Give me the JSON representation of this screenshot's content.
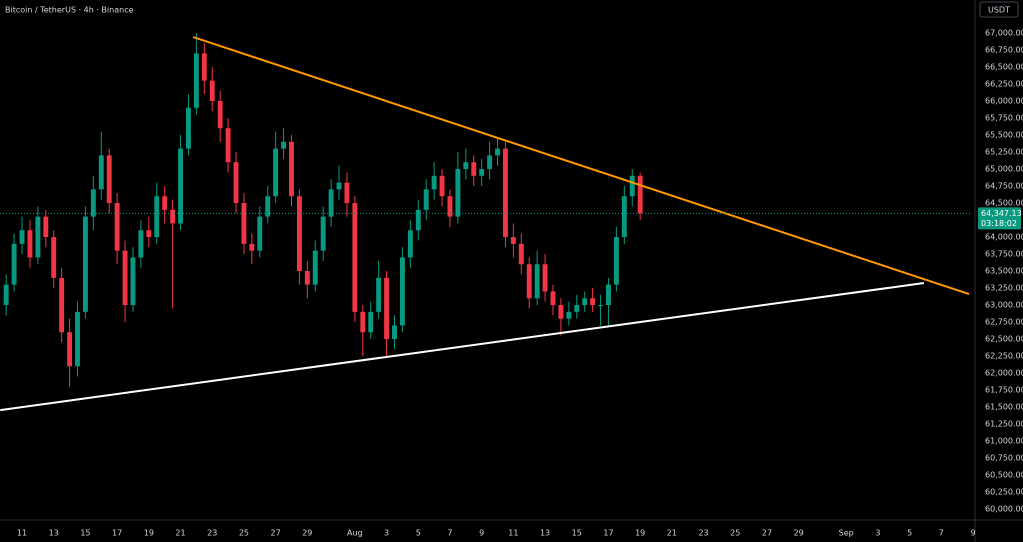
{
  "chart_data": {
    "type": "candlestick",
    "title": "Bitcoin / TetherUS · 4h · Binance",
    "currency_button": "USDT",
    "up_color": "#089981",
    "down_color": "#f23645",
    "candles": [
      [
        10,
        63000,
        63450,
        62850,
        63300
      ],
      [
        10.5,
        63300,
        64050,
        63200,
        63900
      ],
      [
        11,
        63900,
        64300,
        63750,
        64100
      ],
      [
        11.5,
        64100,
        64250,
        63550,
        63700
      ],
      [
        12,
        63700,
        64450,
        63600,
        64300
      ],
      [
        12.5,
        64300,
        64400,
        63850,
        64000
      ],
      [
        13,
        64000,
        64100,
        63250,
        63400
      ],
      [
        13.5,
        63400,
        63550,
        62450,
        62600
      ],
      [
        14,
        62600,
        62800,
        61800,
        62100
      ],
      [
        14.5,
        62100,
        63050,
        61950,
        62900
      ],
      [
        15,
        62900,
        64450,
        62800,
        64300
      ],
      [
        15.5,
        64300,
        64900,
        64100,
        64700
      ],
      [
        16,
        64700,
        65550,
        64550,
        65200
      ],
      [
        16.5,
        65200,
        65300,
        64350,
        64500
      ],
      [
        17,
        64500,
        64650,
        63600,
        63800
      ],
      [
        17.5,
        63800,
        63950,
        62750,
        63000
      ],
      [
        18,
        63000,
        63850,
        62900,
        63700
      ],
      [
        18.5,
        63700,
        64250,
        63550,
        64100
      ],
      [
        19,
        64100,
        64300,
        63850,
        64000
      ],
      [
        19.5,
        64000,
        64800,
        63900,
        64600
      ],
      [
        20,
        64600,
        64750,
        64200,
        64400
      ],
      [
        20.5,
        64400,
        64550,
        62950,
        64200
      ],
      [
        21,
        64200,
        65500,
        64100,
        65300
      ],
      [
        21.5,
        65300,
        66100,
        65200,
        65900
      ],
      [
        22,
        65900,
        67000,
        65800,
        66700
      ],
      [
        22.5,
        66700,
        66850,
        66100,
        66300
      ],
      [
        23,
        66300,
        66500,
        65850,
        66000
      ],
      [
        23.5,
        66000,
        66150,
        65400,
        65600
      ],
      [
        24,
        65600,
        65750,
        64950,
        65100
      ],
      [
        24.5,
        65100,
        65250,
        64350,
        64500
      ],
      [
        25,
        64500,
        64650,
        63750,
        63900
      ],
      [
        25.5,
        63900,
        64050,
        63600,
        63800
      ],
      [
        26,
        63800,
        64450,
        63700,
        64300
      ],
      [
        26.5,
        64300,
        64750,
        64200,
        64600
      ],
      [
        27,
        64600,
        65550,
        64500,
        65300
      ],
      [
        27.5,
        65300,
        65600,
        65150,
        65400
      ],
      [
        28,
        65400,
        65500,
        64450,
        64600
      ],
      [
        28.5,
        64600,
        64700,
        63300,
        63500
      ],
      [
        29,
        63500,
        63650,
        63100,
        63300
      ],
      [
        29.5,
        63300,
        63950,
        63200,
        63800
      ],
      [
        30,
        63800,
        64450,
        63650,
        64300
      ],
      [
        30.5,
        64300,
        64850,
        64150,
        64700
      ],
      [
        31,
        64700,
        65050,
        64550,
        64800
      ],
      [
        31.5,
        64800,
        64950,
        64300,
        64500
      ],
      [
        32,
        64500,
        64600,
        62750,
        62900
      ],
      [
        32.5,
        62900,
        63000,
        62250,
        62600
      ],
      [
        33,
        62600,
        63050,
        62500,
        62900
      ],
      [
        33.5,
        62900,
        63650,
        62800,
        63400
      ],
      [
        34,
        63400,
        63500,
        62250,
        62500
      ],
      [
        34.5,
        62500,
        62850,
        62350,
        62700
      ],
      [
        35,
        62700,
        63850,
        62600,
        63700
      ],
      [
        35.5,
        63700,
        64250,
        63550,
        64100
      ],
      [
        36,
        64100,
        64550,
        63950,
        64400
      ],
      [
        36.5,
        64400,
        64850,
        64250,
        64700
      ],
      [
        37,
        64700,
        65100,
        64550,
        64900
      ],
      [
        37.5,
        64900,
        65000,
        64450,
        64600
      ],
      [
        38,
        64600,
        64700,
        64150,
        64300
      ],
      [
        38.5,
        64300,
        65250,
        64200,
        65000
      ],
      [
        39,
        65000,
        65300,
        64850,
        65100
      ],
      [
        39.5,
        65100,
        65200,
        64750,
        64900
      ],
      [
        40,
        64900,
        65150,
        64750,
        65000
      ],
      [
        40.5,
        65000,
        65400,
        64850,
        65200
      ],
      [
        41,
        65200,
        65450,
        65050,
        65300
      ],
      [
        41.5,
        65300,
        65400,
        63850,
        64000
      ],
      [
        42,
        64000,
        64200,
        63700,
        63900
      ],
      [
        42.5,
        63900,
        64050,
        63450,
        63600
      ],
      [
        43,
        63600,
        63700,
        62950,
        63100
      ],
      [
        43.5,
        63100,
        63800,
        63000,
        63600
      ],
      [
        44,
        63600,
        63750,
        63050,
        63200
      ],
      [
        44.5,
        63200,
        63300,
        62850,
        63000
      ],
      [
        45,
        63000,
        63100,
        62550,
        62800
      ],
      [
        45.5,
        62800,
        63050,
        62700,
        62900
      ],
      [
        46,
        62900,
        63150,
        62800,
        63000
      ],
      [
        46.5,
        63000,
        63200,
        62900,
        63100
      ],
      [
        47,
        63100,
        63250,
        62900,
        63000
      ],
      [
        47.5,
        63000,
        63150,
        62700,
        63000
      ],
      [
        48,
        63000,
        63400,
        62700,
        63300
      ],
      [
        48.5,
        63300,
        64150,
        63200,
        64000
      ],
      [
        49,
        64000,
        64750,
        63900,
        64600
      ],
      [
        49.5,
        64600,
        65000,
        64450,
        64900
      ],
      [
        50,
        64900,
        64950,
        64250,
        64347.13
      ]
    ],
    "last_price": {
      "value": 64347.13,
      "label": "64,347.13"
    },
    "countdown": "03:18:02",
    "trendlines": [
      {
        "color": "#ff9800",
        "points": [
          [
            21.8,
            66940
          ],
          [
            70.75,
            63162
          ]
        ]
      },
      {
        "color": "#ffffff",
        "points": [
          [
            9.625,
            61456
          ],
          [
            67.9,
            63324
          ]
        ]
      }
    ],
    "xlim": [
      9.61,
      70.81
    ],
    "xticks": [
      11,
      13,
      15,
      17,
      19,
      21,
      23,
      25,
      27,
      29,
      {
        "value": 32,
        "label": "Aug"
      },
      {
        "value": 34,
        "label": "3"
      },
      {
        "value": 36,
        "label": "5"
      },
      {
        "value": 38,
        "label": "7"
      },
      {
        "value": 40,
        "label": "9"
      },
      {
        "value": 42,
        "label": "11"
      },
      {
        "value": 44,
        "label": "13"
      },
      {
        "value": 46,
        "label": "15"
      },
      {
        "value": 48,
        "label": "17"
      },
      {
        "value": 50,
        "label": "19"
      },
      {
        "value": 52,
        "label": "21"
      },
      {
        "value": 54,
        "label": "23"
      },
      {
        "value": 56,
        "label": "25"
      },
      {
        "value": 58,
        "label": "27"
      },
      {
        "value": 60,
        "label": "29"
      },
      {
        "value": 63,
        "label": "Sep"
      },
      {
        "value": 65,
        "label": "3"
      },
      {
        "value": 67,
        "label": "5"
      },
      {
        "value": 69,
        "label": "7"
      },
      {
        "value": 71,
        "label": "9"
      }
    ],
    "ylim": [
      59840,
      67485
    ],
    "yticks": [
      {
        "value": 67000,
        "label": "67,000.00"
      },
      {
        "value": 66750,
        "label": "66,750.00"
      },
      {
        "value": 66500,
        "label": "66,500.00"
      },
      {
        "value": 66250,
        "label": "66,250.00"
      },
      {
        "value": 66000,
        "label": "66,000.00"
      },
      {
        "value": 65750,
        "label": "65,750.00"
      },
      {
        "value": 65500,
        "label": "65,500.00"
      },
      {
        "value": 65250,
        "label": "65,250.00"
      },
      {
        "value": 65000,
        "label": "65,000.00"
      },
      {
        "value": 64750,
        "label": "64,750.00"
      },
      {
        "value": 64500,
        "label": "64,500.00"
      },
      {
        "value": 64000,
        "label": "64,000.00"
      },
      {
        "value": 63750,
        "label": "63,750.00"
      },
      {
        "value": 63500,
        "label": "63,500.00"
      },
      {
        "value": 63250,
        "label": "63,250.00"
      },
      {
        "value": 63000,
        "label": "63,000.00"
      },
      {
        "value": 62750,
        "label": "62,750.00"
      },
      {
        "value": 62500,
        "label": "62,500.00"
      },
      {
        "value": 62250,
        "label": "62,250.00"
      },
      {
        "value": 62000,
        "label": "62,000.00"
      },
      {
        "value": 61750,
        "label": "61,750.00"
      },
      {
        "value": 61500,
        "label": "61,500.00"
      },
      {
        "value": 61250,
        "label": "61,250.00"
      },
      {
        "value": 61000,
        "label": "61,000.00"
      },
      {
        "value": 60750,
        "label": "60,750.00"
      },
      {
        "value": 60500,
        "label": "60,500.00"
      },
      {
        "value": 60250,
        "label": "60,250.00"
      },
      {
        "value": 60000,
        "label": "60,000.00"
      }
    ]
  }
}
